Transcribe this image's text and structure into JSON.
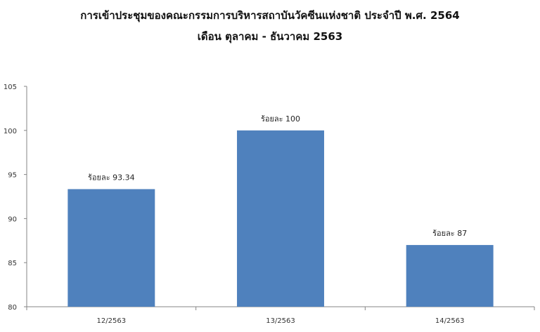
{
  "chart_data": {
    "type": "bar",
    "title": "การเข้าประชุมของคณะกรรมการบริหารสถาบันวัคซีนแห่งชาติ ประจำปี พ.ศ. 2564",
    "subtitle": "เดือน ตุลาคม - ธันวาคม 2563",
    "categories": [
      "12/2563",
      "13/2563",
      "14/2563"
    ],
    "values": [
      93.34,
      100,
      87
    ],
    "data_labels": [
      "ร้อยละ 93.34",
      "ร้อยละ 100",
      "ร้อยละ 87"
    ],
    "xlabel": "",
    "ylabel": "",
    "ylim": [
      80,
      105
    ],
    "yticks": [
      80,
      85,
      90,
      95,
      100,
      105
    ],
    "grid": false,
    "legend": "none",
    "bar_color": "#4f81bd"
  }
}
